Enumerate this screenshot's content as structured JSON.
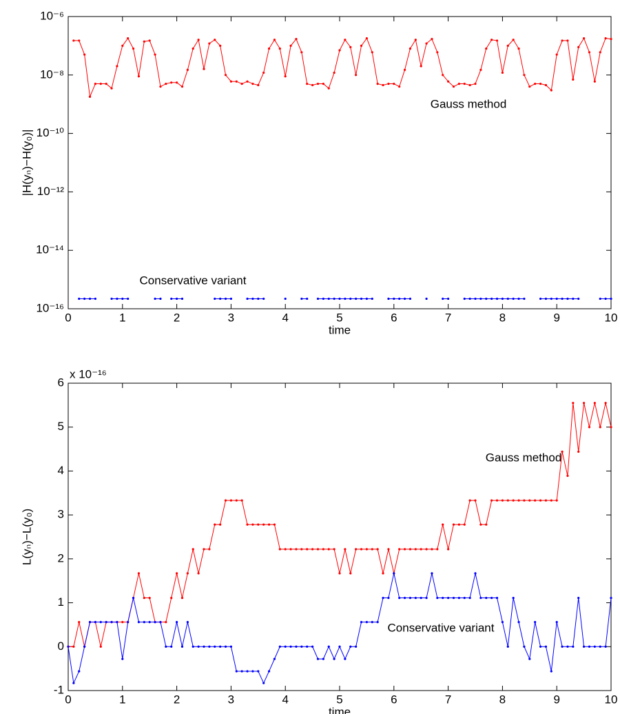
{
  "chart_data": [
    {
      "type": "line",
      "yscale": "log",
      "xlabel": "time",
      "ylabel": "|H(yₙ)−H(y₀)|",
      "x": [
        0,
        0.1,
        0.2,
        0.3,
        0.4,
        0.5,
        0.6,
        0.7,
        0.8,
        0.9,
        1,
        1.1,
        1.2,
        1.3,
        1.4,
        1.5,
        1.6,
        1.7,
        1.8,
        1.9,
        2,
        2.1,
        2.2,
        2.3,
        2.4,
        2.5,
        2.6,
        2.7,
        2.8,
        2.9,
        3,
        3.1,
        3.2,
        3.3,
        3.4,
        3.5,
        3.6,
        3.7,
        3.8,
        3.9,
        4,
        4.1,
        4.2,
        4.3,
        4.4,
        4.5,
        4.6,
        4.7,
        4.8,
        4.9,
        5,
        5.1,
        5.2,
        5.3,
        5.4,
        5.5,
        5.6,
        5.7,
        5.8,
        5.9,
        6,
        6.1,
        6.2,
        6.3,
        6.4,
        6.5,
        6.6,
        6.7,
        6.8,
        6.9,
        7,
        7.1,
        7.2,
        7.3,
        7.4,
        7.5,
        7.6,
        7.7,
        7.8,
        7.9,
        8,
        8.1,
        8.2,
        8.3,
        8.4,
        8.5,
        8.6,
        8.7,
        8.8,
        8.9,
        9,
        9.1,
        9.2,
        9.3,
        9.4,
        9.5,
        9.6,
        9.7,
        9.8,
        9.9,
        10
      ],
      "series": [
        {
          "name": "Gauss method",
          "color": "#ff0000",
          "values": [
            null,
            1.5e-07,
            1.5e-07,
            5e-08,
            1.8e-09,
            5e-09,
            5e-09,
            5e-09,
            3.5e-09,
            2e-08,
            1e-07,
            1.8e-07,
            8e-08,
            9e-09,
            1.4e-07,
            1.5e-07,
            5e-08,
            4e-09,
            5e-09,
            5.5e-09,
            5.5e-09,
            4e-09,
            1.5e-08,
            8e-08,
            1.6e-07,
            1.6e-08,
            1.2e-07,
            1.6e-07,
            1e-07,
            1e-08,
            6e-09,
            6e-09,
            5e-09,
            6e-09,
            5e-09,
            4.5e-09,
            1.2e-08,
            8e-08,
            1.6e-07,
            8e-08,
            9e-09,
            1e-07,
            1.7e-07,
            6e-08,
            5e-09,
            4.5e-09,
            5e-09,
            5e-09,
            3.5e-09,
            1.2e-08,
            7e-08,
            1.6e-07,
            9e-08,
            1e-08,
            1e-07,
            1.8e-07,
            6e-08,
            5e-09,
            4.5e-09,
            5e-09,
            5e-09,
            4e-09,
            1.5e-08,
            8e-08,
            1.6e-07,
            2e-08,
            1.2e-07,
            1.7e-07,
            6e-08,
            1e-08,
            6e-09,
            4e-09,
            5e-09,
            5e-09,
            4.5e-09,
            5e-09,
            1.5e-08,
            8e-08,
            1.6e-07,
            1.5e-07,
            1.2e-08,
            1e-07,
            1.6e-07,
            8e-08,
            1e-08,
            4e-09,
            5e-09,
            5e-09,
            4.5e-09,
            3e-09,
            5e-08,
            1.5e-07,
            1.5e-07,
            7e-09,
            9e-08,
            1.8e-07,
            6e-08,
            6e-09,
            6e-08,
            1.8e-07,
            1.7e-07
          ]
        },
        {
          "name": "Conservative variant",
          "color": "#0000ff",
          "values": [
            null,
            null,
            2.2e-16,
            2.2e-16,
            2.2e-16,
            2.2e-16,
            null,
            null,
            2.2e-16,
            2.2e-16,
            2.2e-16,
            2.2e-16,
            null,
            null,
            null,
            null,
            2.2e-16,
            2.2e-16,
            null,
            2.2e-16,
            2.2e-16,
            2.2e-16,
            null,
            null,
            null,
            null,
            null,
            2.2e-16,
            2.2e-16,
            2.2e-16,
            2.2e-16,
            null,
            null,
            2.2e-16,
            2.2e-16,
            2.2e-16,
            2.2e-16,
            null,
            null,
            null,
            2.2e-16,
            null,
            null,
            2.2e-16,
            2.2e-16,
            null,
            2.2e-16,
            2.2e-16,
            2.2e-16,
            2.2e-16,
            2.2e-16,
            2.2e-16,
            2.2e-16,
            2.2e-16,
            2.2e-16,
            2.2e-16,
            2.2e-16,
            null,
            null,
            2.2e-16,
            2.2e-16,
            2.2e-16,
            2.2e-16,
            2.2e-16,
            null,
            null,
            2.2e-16,
            null,
            null,
            2.2e-16,
            2.2e-16,
            null,
            null,
            2.2e-16,
            2.2e-16,
            2.2e-16,
            2.2e-16,
            2.2e-16,
            2.2e-16,
            2.2e-16,
            2.2e-16,
            2.2e-16,
            2.2e-16,
            2.2e-16,
            2.2e-16,
            null,
            null,
            2.2e-16,
            2.2e-16,
            2.2e-16,
            2.2e-16,
            2.2e-16,
            2.2e-16,
            2.2e-16,
            2.2e-16,
            null,
            null,
            null,
            2.2e-16,
            2.2e-16,
            2.2e-16
          ]
        }
      ],
      "annotations": [
        "Gauss method",
        "Conservative variant"
      ],
      "xlim": [
        0,
        10
      ],
      "xticks": [
        0,
        1,
        2,
        3,
        4,
        5,
        6,
        7,
        8,
        9,
        10
      ],
      "ylim": [
        1e-16,
        1e-06
      ],
      "yticks": [
        {
          "value": 1e-16,
          "label": "10⁻¹⁶"
        },
        {
          "value": 1e-14,
          "label": "10⁻¹⁴"
        },
        {
          "value": 1e-12,
          "label": "10⁻¹²"
        },
        {
          "value": 1e-10,
          "label": "10⁻¹⁰"
        },
        {
          "value": 1e-08,
          "label": "10⁻⁸"
        },
        {
          "value": 1e-06,
          "label": "10⁻⁶"
        }
      ]
    },
    {
      "type": "line",
      "xlabel": "time",
      "ylabel": "L(yₙ)−L(y₀)",
      "y_multiplier": "x 10⁻¹⁶",
      "x": [
        0,
        0.1,
        0.2,
        0.3,
        0.4,
        0.5,
        0.6,
        0.7,
        0.8,
        0.9,
        1,
        1.1,
        1.2,
        1.3,
        1.4,
        1.5,
        1.6,
        1.7,
        1.8,
        1.9,
        2,
        2.1,
        2.2,
        2.3,
        2.4,
        2.5,
        2.6,
        2.7,
        2.8,
        2.9,
        3,
        3.1,
        3.2,
        3.3,
        3.4,
        3.5,
        3.6,
        3.7,
        3.8,
        3.9,
        4,
        4.1,
        4.2,
        4.3,
        4.4,
        4.5,
        4.6,
        4.7,
        4.8,
        4.9,
        5,
        5.1,
        5.2,
        5.3,
        5.4,
        5.5,
        5.6,
        5.7,
        5.8,
        5.9,
        6,
        6.1,
        6.2,
        6.3,
        6.4,
        6.5,
        6.6,
        6.7,
        6.8,
        6.9,
        7,
        7.1,
        7.2,
        7.3,
        7.4,
        7.5,
        7.6,
        7.7,
        7.8,
        7.9,
        8,
        8.1,
        8.2,
        8.3,
        8.4,
        8.5,
        8.6,
        8.7,
        8.8,
        8.9,
        9,
        9.1,
        9.2,
        9.3,
        9.4,
        9.5,
        9.6,
        9.7,
        9.8,
        9.9,
        10
      ],
      "series": [
        {
          "name": "Gauss method",
          "color": "#ff0000",
          "values": [
            0,
            0,
            0.56,
            0,
            0.56,
            0.56,
            0,
            0.56,
            0.56,
            0.56,
            0.56,
            0.56,
            1.11,
            1.67,
            1.11,
            1.11,
            0.56,
            0.56,
            0.56,
            1.11,
            1.67,
            1.11,
            1.67,
            2.22,
            1.67,
            2.22,
            2.22,
            2.78,
            2.78,
            3.33,
            3.33,
            3.33,
            3.33,
            2.78,
            2.78,
            2.78,
            2.78,
            2.78,
            2.78,
            2.22,
            2.22,
            2.22,
            2.22,
            2.22,
            2.22,
            2.22,
            2.22,
            2.22,
            2.22,
            2.22,
            1.67,
            2.22,
            1.67,
            2.22,
            2.22,
            2.22,
            2.22,
            2.22,
            1.67,
            2.22,
            1.67,
            2.22,
            2.22,
            2.22,
            2.22,
            2.22,
            2.22,
            2.22,
            2.22,
            2.78,
            2.22,
            2.78,
            2.78,
            2.78,
            3.33,
            3.33,
            2.78,
            2.78,
            3.33,
            3.33,
            3.33,
            3.33,
            3.33,
            3.33,
            3.33,
            3.33,
            3.33,
            3.33,
            3.33,
            3.33,
            3.33,
            4.44,
            3.89,
            5.55,
            4.44,
            5.55,
            5,
            5.55,
            5,
            5.55,
            5
          ]
        },
        {
          "name": "Conservative variant",
          "color": "#0000ff",
          "values": [
            0,
            -0.83,
            -0.56,
            0,
            0.56,
            0.56,
            0.56,
            0.56,
            0.56,
            0.56,
            -0.28,
            0.56,
            1.11,
            0.56,
            0.56,
            0.56,
            0.56,
            0.56,
            0,
            0,
            0.56,
            0,
            0.56,
            0,
            0,
            0,
            0,
            0,
            0,
            0,
            0,
            -0.56,
            -0.56,
            -0.56,
            -0.56,
            -0.56,
            -0.83,
            -0.56,
            -0.28,
            0,
            0,
            0,
            0,
            0,
            0,
            0,
            -0.28,
            -0.28,
            0,
            -0.28,
            0,
            -0.28,
            0,
            0,
            0.56,
            0.56,
            0.56,
            0.56,
            1.11,
            1.11,
            1.67,
            1.11,
            1.11,
            1.11,
            1.11,
            1.11,
            1.11,
            1.67,
            1.11,
            1.11,
            1.11,
            1.11,
            1.11,
            1.11,
            1.11,
            1.67,
            1.11,
            1.11,
            1.11,
            1.11,
            0.56,
            0,
            1.11,
            0.56,
            0,
            -0.28,
            0.56,
            0,
            0,
            -0.56,
            0.56,
            0,
            0,
            0,
            1.11,
            0,
            0,
            0,
            0,
            0,
            1.11
          ]
        }
      ],
      "annotations": [
        "Gauss method",
        "Conservative variant"
      ],
      "xlim": [
        0,
        10
      ],
      "xticks": [
        0,
        1,
        2,
        3,
        4,
        5,
        6,
        7,
        8,
        9,
        10
      ],
      "ylim": [
        -1,
        6
      ],
      "yticks": [
        -1,
        0,
        1,
        2,
        3,
        4,
        5,
        6
      ]
    }
  ]
}
